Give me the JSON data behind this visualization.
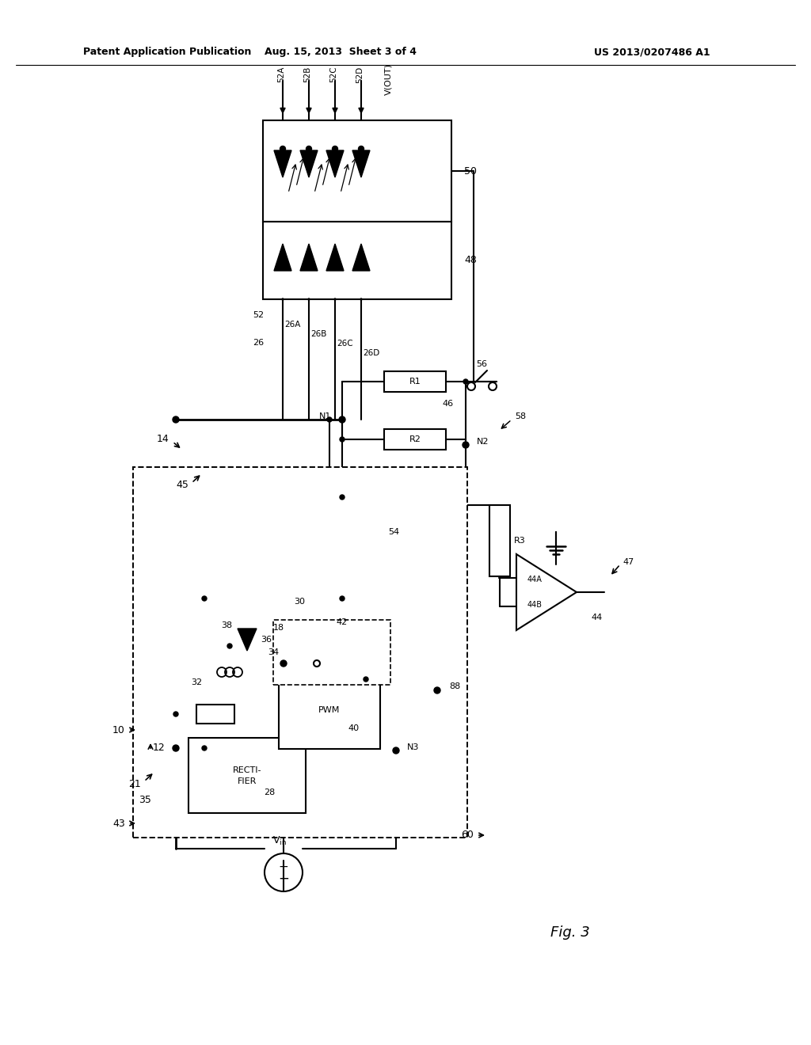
{
  "header_left": "Patent Application Publication",
  "header_mid": "Aug. 15, 2013  Sheet 3 of 4",
  "header_right": "US 2013/0207486 A1",
  "fig_label": "Fig. 3",
  "bg_color": "#ffffff"
}
